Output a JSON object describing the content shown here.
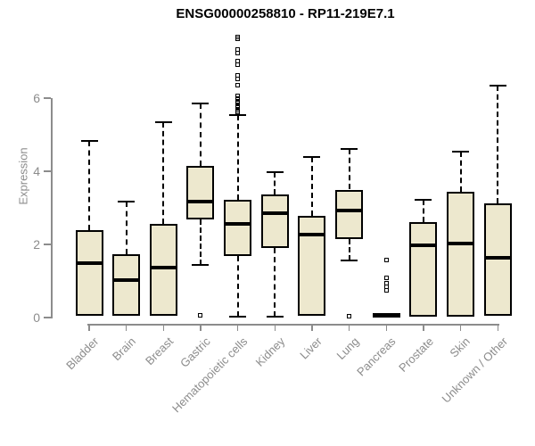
{
  "chart_data": {
    "type": "boxplot",
    "title": "ENSG00000258810 - RP11-219E7.1",
    "ylabel": "Expression",
    "xlabel": "",
    "ylim": [
      0,
      6
    ],
    "y_ticks": [
      0,
      2,
      4,
      6
    ],
    "grid": false,
    "legend": "none",
    "categories": [
      "Bladder",
      "Brain",
      "Breast",
      "Gastric",
      "Hematopoietic cells",
      "Kidney",
      "Liver",
      "Lung",
      "Pancreas",
      "Prostate",
      "Skin",
      "Unknown / Other"
    ],
    "series": [
      {
        "name": "Bladder",
        "whisker_low": 0.05,
        "q1": 0.05,
        "median": 1.5,
        "q3": 2.4,
        "whisker_high": 4.82,
        "outliers": []
      },
      {
        "name": "Brain",
        "whisker_low": 0.05,
        "q1": 0.05,
        "median": 1.02,
        "q3": 1.72,
        "whisker_high": 3.18,
        "outliers": []
      },
      {
        "name": "Breast",
        "whisker_low": 0.05,
        "q1": 0.05,
        "median": 1.36,
        "q3": 2.55,
        "whisker_high": 5.33,
        "outliers": []
      },
      {
        "name": "Gastric",
        "whisker_low": 1.45,
        "q1": 2.68,
        "median": 3.16,
        "q3": 4.15,
        "whisker_high": 5.85,
        "outliers": [
          0.05
        ]
      },
      {
        "name": "Hematopoietic cells",
        "whisker_low": 0.02,
        "q1": 1.69,
        "median": 2.56,
        "q3": 3.23,
        "whisker_high": 5.54,
        "outliers": [
          5.62,
          5.68,
          5.74,
          5.8,
          5.86,
          5.92,
          5.98,
          6.05,
          6.35,
          6.52,
          6.62,
          6.92,
          7.02,
          7.22,
          7.32,
          7.62,
          7.68
        ]
      },
      {
        "name": "Kidney",
        "whisker_low": 0.02,
        "q1": 1.9,
        "median": 2.85,
        "q3": 3.37,
        "whisker_high": 3.98,
        "outliers": []
      },
      {
        "name": "Liver",
        "whisker_low": 0.05,
        "q1": 0.05,
        "median": 2.26,
        "q3": 2.79,
        "whisker_high": 4.38,
        "outliers": []
      },
      {
        "name": "Lung",
        "whisker_low": 1.57,
        "q1": 2.14,
        "median": 2.93,
        "q3": 3.5,
        "whisker_high": 4.6,
        "outliers": [
          0.03
        ]
      },
      {
        "name": "Pancreas",
        "whisker_low": 0.0,
        "q1": 0.0,
        "median": 0.05,
        "q3": 0.12,
        "whisker_high": 0.12,
        "outliers": [
          0.75,
          0.85,
          0.95,
          1.08,
          1.57
        ]
      },
      {
        "name": "Prostate",
        "whisker_low": 0.03,
        "q1": 0.03,
        "median": 1.97,
        "q3": 2.6,
        "whisker_high": 3.22,
        "outliers": []
      },
      {
        "name": "Skin",
        "whisker_low": 0.03,
        "q1": 0.03,
        "median": 2.03,
        "q3": 3.44,
        "whisker_high": 4.54,
        "outliers": []
      },
      {
        "name": "Unknown / Other",
        "whisker_low": 0.04,
        "q1": 0.04,
        "median": 1.63,
        "q3": 3.13,
        "whisker_high": 6.35,
        "outliers": []
      }
    ],
    "colors": {
      "box_fill": "#EDE8CE",
      "box_border": "#000000",
      "median": "#000000",
      "whisker": "#000000",
      "axis": "#8C8C8C",
      "tick_text": "#8C8C8C",
      "title_text": "#000000"
    }
  }
}
